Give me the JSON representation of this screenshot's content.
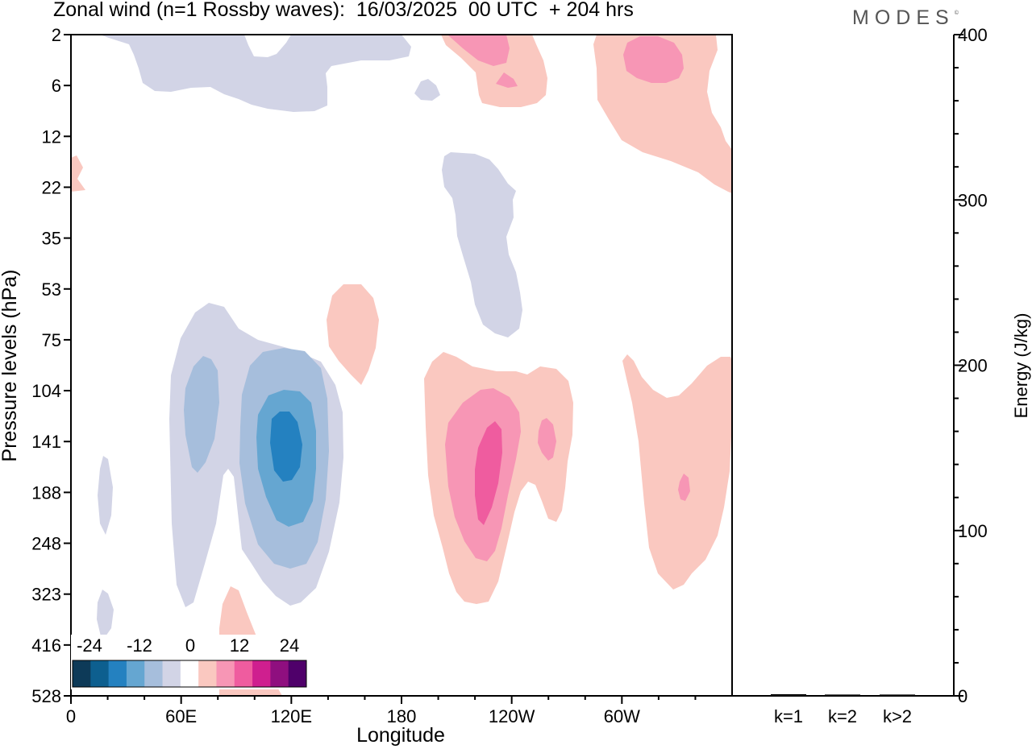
{
  "title": "Zonal wind (n=1 Rossby waves):  16/03/2025  00 UTC  + 204 hrs",
  "logo": "MODES",
  "colors": {
    "neg": [
      "#0d3a58",
      "#0d5f8f",
      "#2481c0",
      "#65a6d1",
      "#a6bedc",
      "#d2d4e6"
    ],
    "zero": "#ffffff",
    "pos": [
      "#fac8c0",
      "#f796b5",
      "#ef5c9f",
      "#cf1f8f",
      "#8f0f7f",
      "#4f006a"
    ]
  },
  "chart_data": [
    {
      "type": "heatmap",
      "title": "Zonal wind (n=1 Rossby waves):  16/03/2025  00 UTC  + 204 hrs",
      "xlabel": "Longitude",
      "ylabel": "Pressure levels (hPa)",
      "x_ticks": [
        "0",
        "60E",
        "120E",
        "180",
        "120W",
        "60W"
      ],
      "x_tick_positions_deg": [
        0,
        60,
        120,
        180,
        240,
        300
      ],
      "x_range_deg": [
        0,
        360
      ],
      "y_ticks": [
        "2",
        "6",
        "12",
        "22",
        "35",
        "53",
        "75",
        "104",
        "141",
        "188",
        "248",
        "323",
        "416",
        "528"
      ],
      "colorbar": {
        "tick_labels": [
          "-24",
          "-12",
          "0",
          "12",
          "24"
        ],
        "levels": [
          -30,
          -25,
          -20,
          -15,
          -10,
          -5,
          -1,
          1,
          5,
          10,
          15,
          20,
          25,
          30
        ]
      },
      "features": [
        {
          "kind": "negative",
          "max_magnitude": 17,
          "lon_deg": 117,
          "level_hPa": 141
        },
        {
          "kind": "negative",
          "max_magnitude": 10,
          "lon_deg": 70,
          "level_hPa": 130
        },
        {
          "kind": "positive",
          "max_magnitude": 14,
          "lon_deg": 227,
          "level_hPa": 160
        },
        {
          "kind": "positive",
          "max_magnitude": 8,
          "lon_deg": 260,
          "level_hPa": 141
        },
        {
          "kind": "positive",
          "max_magnitude": 8,
          "lon_deg": 333,
          "level_hPa": 6
        },
        {
          "kind": "negative",
          "max_magnitude": 4,
          "lon_deg": 210,
          "level_hPa": 40
        }
      ]
    },
    {
      "type": "bar",
      "ylabel": "Energy (J/kg)",
      "categories": [
        "k=1",
        "k=2",
        "k>2"
      ],
      "values": [
        0.5,
        0.3,
        0.3
      ],
      "ylim": [
        0,
        400
      ],
      "y_ticks": [
        "0",
        "100",
        "200",
        "300",
        "400"
      ]
    }
  ]
}
